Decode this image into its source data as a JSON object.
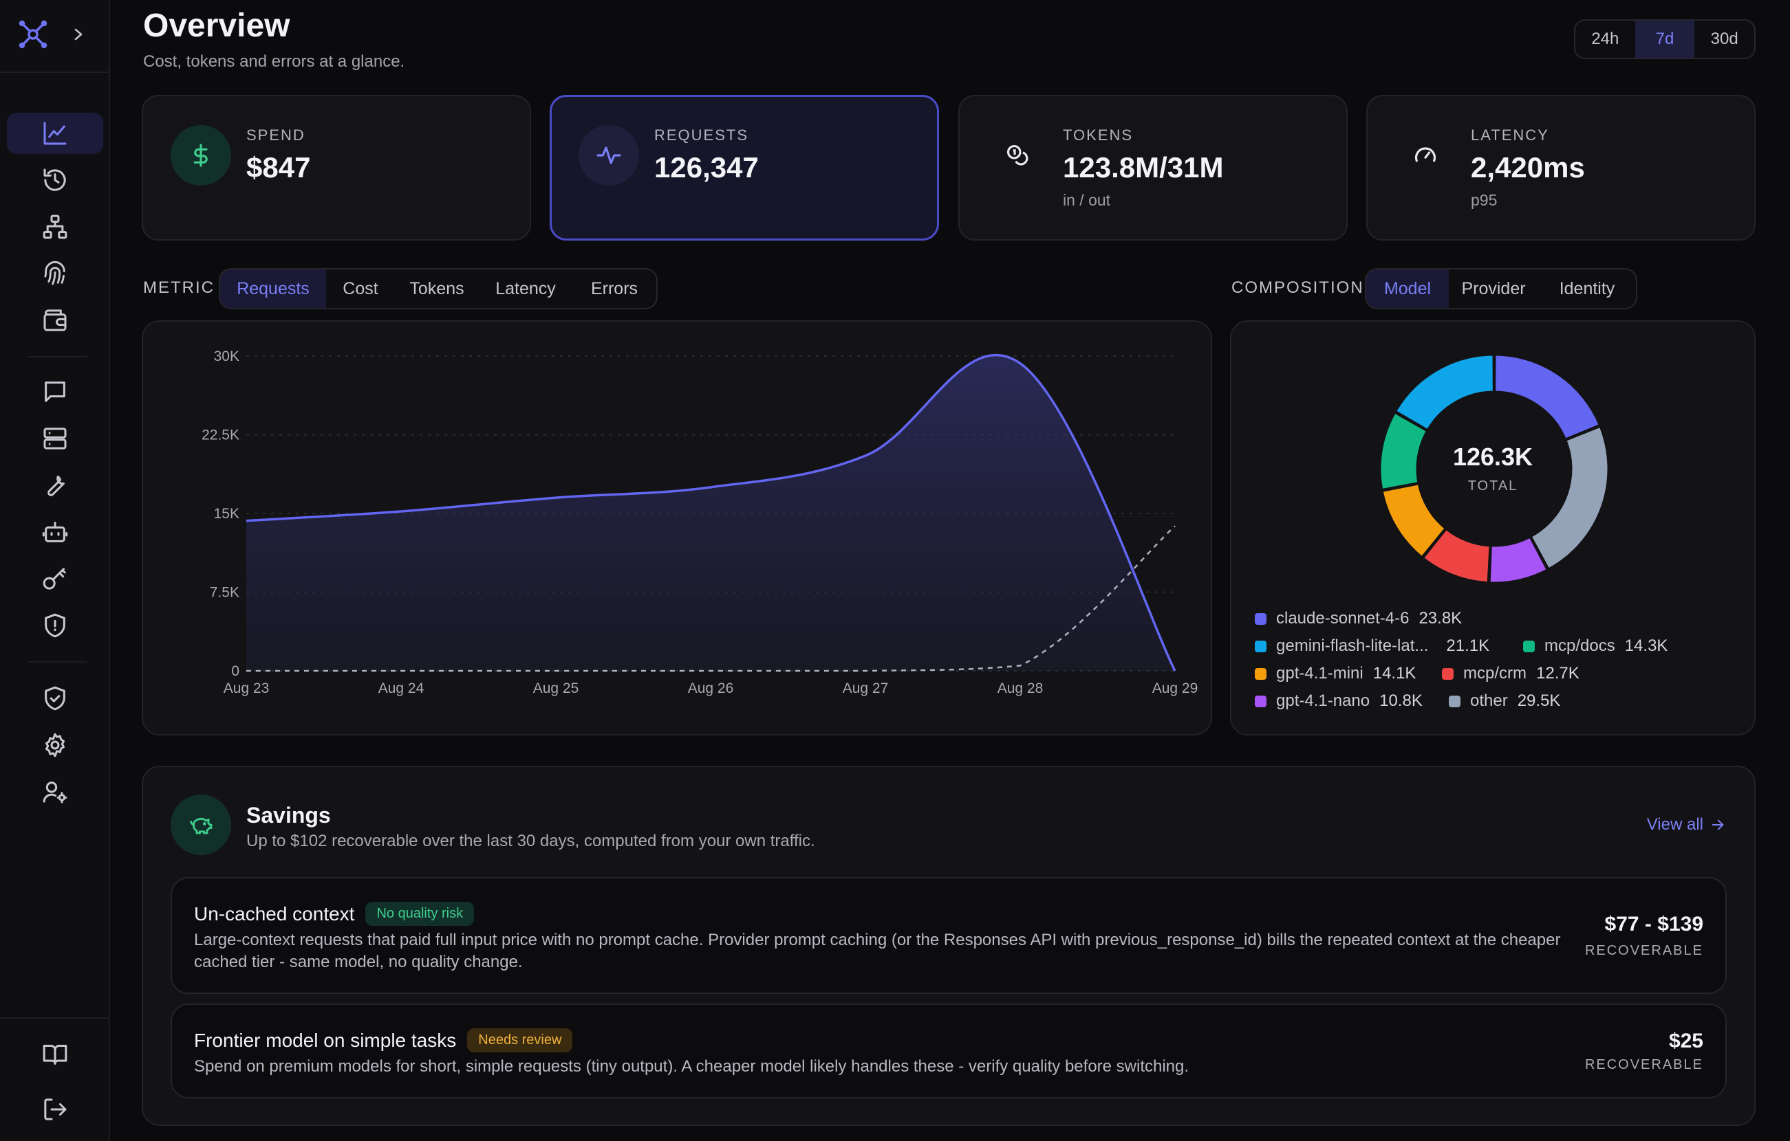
{
  "header": {
    "title": "Overview",
    "subtitle": "Cost, tokens and errors at a glance.",
    "ranges": [
      "24h",
      "7d",
      "30d"
    ],
    "active_range": "7d"
  },
  "sidebar": {
    "items": [
      {
        "icon": "chart-line-icon",
        "active": true
      },
      {
        "icon": "history-icon"
      },
      {
        "icon": "hierarchy-icon"
      },
      {
        "icon": "fingerprint-icon"
      },
      {
        "icon": "wallet-icon"
      },
      {
        "icon": "message-icon"
      },
      {
        "icon": "server-icon"
      },
      {
        "icon": "wrench-icon"
      },
      {
        "icon": "robot-icon"
      },
      {
        "icon": "key-icon"
      },
      {
        "icon": "shield-alert-icon"
      },
      {
        "icon": "shield-check-icon"
      },
      {
        "icon": "gear-icon"
      },
      {
        "icon": "user-gear-icon"
      }
    ],
    "bottom": [
      {
        "icon": "book-icon"
      },
      {
        "icon": "logout-icon"
      }
    ]
  },
  "kpis": [
    {
      "label": "SPEND",
      "value": "$847",
      "sub": "",
      "icon": "dollar-icon",
      "color": "#3ecf8e"
    },
    {
      "label": "REQUESTS",
      "value": "126,347",
      "sub": "",
      "icon": "activity-icon",
      "color": "#7b7ff6"
    },
    {
      "label": "TOKENS",
      "value": "123.8M/31M",
      "sub": "in / out",
      "icon": "coins-icon",
      "color": "#e8e8ee"
    },
    {
      "label": "LATENCY",
      "value": "2,420ms",
      "sub": "p95",
      "icon": "gauge-icon",
      "color": "#e8e8ee"
    }
  ],
  "metric": {
    "label": "METRIC",
    "tabs": [
      "Requests",
      "Cost",
      "Tokens",
      "Latency",
      "Errors"
    ],
    "active": "Requests"
  },
  "composition": {
    "label": "COMPOSITION",
    "tabs": [
      "Model",
      "Provider",
      "Identity"
    ],
    "active": "Model"
  },
  "chart_data": [
    {
      "type": "area",
      "categories": [
        "Aug 23",
        "Aug 24",
        "Aug 25",
        "Aug 26",
        "Aug 27",
        "Aug 28",
        "Aug 29"
      ],
      "ylim": [
        0,
        30000
      ],
      "yticks": [
        "0",
        "7.5K",
        "15K",
        "22.5K",
        "30K"
      ],
      "series": [
        {
          "values": [
            14300,
            15200,
            16500,
            17500,
            20500,
            29300,
            0
          ],
          "color": "#6366f1",
          "style": "solid"
        },
        {
          "values": [
            0,
            0,
            0,
            0,
            0,
            500,
            13800
          ],
          "color": "#b0b0c0",
          "style": "dashed"
        }
      ],
      "grid": true
    },
    {
      "type": "pie",
      "total": "126.3K",
      "total_label": "TOTAL",
      "slices": [
        {
          "name": "claude-sonnet-4-6",
          "label": "23.8K",
          "value": 23.8,
          "color": "#6366f1"
        },
        {
          "name": "other",
          "label": "29.5K",
          "value": 29.5,
          "color": "#94a3b8"
        },
        {
          "name": "gpt-4.1-nano",
          "label": "10.8K",
          "value": 10.8,
          "color": "#a855f7"
        },
        {
          "name": "mcp/crm",
          "label": "12.7K",
          "value": 12.7,
          "color": "#ef4444"
        },
        {
          "name": "gpt-4.1-mini",
          "label": "14.1K",
          "value": 14.1,
          "color": "#f59e0b"
        },
        {
          "name": "mcp/docs",
          "label": "14.3K",
          "value": 14.3,
          "color": "#10b981"
        },
        {
          "name": "gemini-flash-lite-lat...",
          "label": "21.1K",
          "value": 21.1,
          "color": "#0ea5e9"
        }
      ]
    }
  ],
  "legend": [
    {
      "name": "claude-sonnet-4-6",
      "value": "23.8K",
      "color": "#6366f1"
    },
    {
      "name": "gemini-flash-lite-lat...",
      "value": "21.1K",
      "color": "#0ea5e9"
    },
    {
      "name": "mcp/docs",
      "value": "14.3K",
      "color": "#10b981"
    },
    {
      "name": "gpt-4.1-mini",
      "value": "14.1K",
      "color": "#f59e0b"
    },
    {
      "name": "mcp/crm",
      "value": "12.7K",
      "color": "#ef4444"
    },
    {
      "name": "gpt-4.1-nano",
      "value": "10.8K",
      "color": "#a855f7"
    },
    {
      "name": "other",
      "value": "29.5K",
      "color": "#94a3b8"
    }
  ],
  "savings": {
    "title": "Savings",
    "subtitle": "Up to $102 recoverable over the last 30 days, computed from your own traffic.",
    "view_all": "View all",
    "items": [
      {
        "title": "Un-cached context",
        "badge": "No quality risk",
        "badge_kind": "green",
        "desc": "Large-context requests that paid full input price with no prompt cache. Provider prompt caching (or the Responses API with previous_response_id) bills the repeated context at the cheaper cached tier - same model, no quality change.",
        "amount": "$77 - $139",
        "tag": "RECOVERABLE"
      },
      {
        "title": "Frontier model on simple tasks",
        "badge": "Needs review",
        "badge_kind": "amber",
        "desc": "Spend on premium models for short, simple requests (tiny output). A cheaper model likely handles these - verify quality before switching.",
        "amount": "$25",
        "tag": "RECOVERABLE"
      }
    ]
  }
}
